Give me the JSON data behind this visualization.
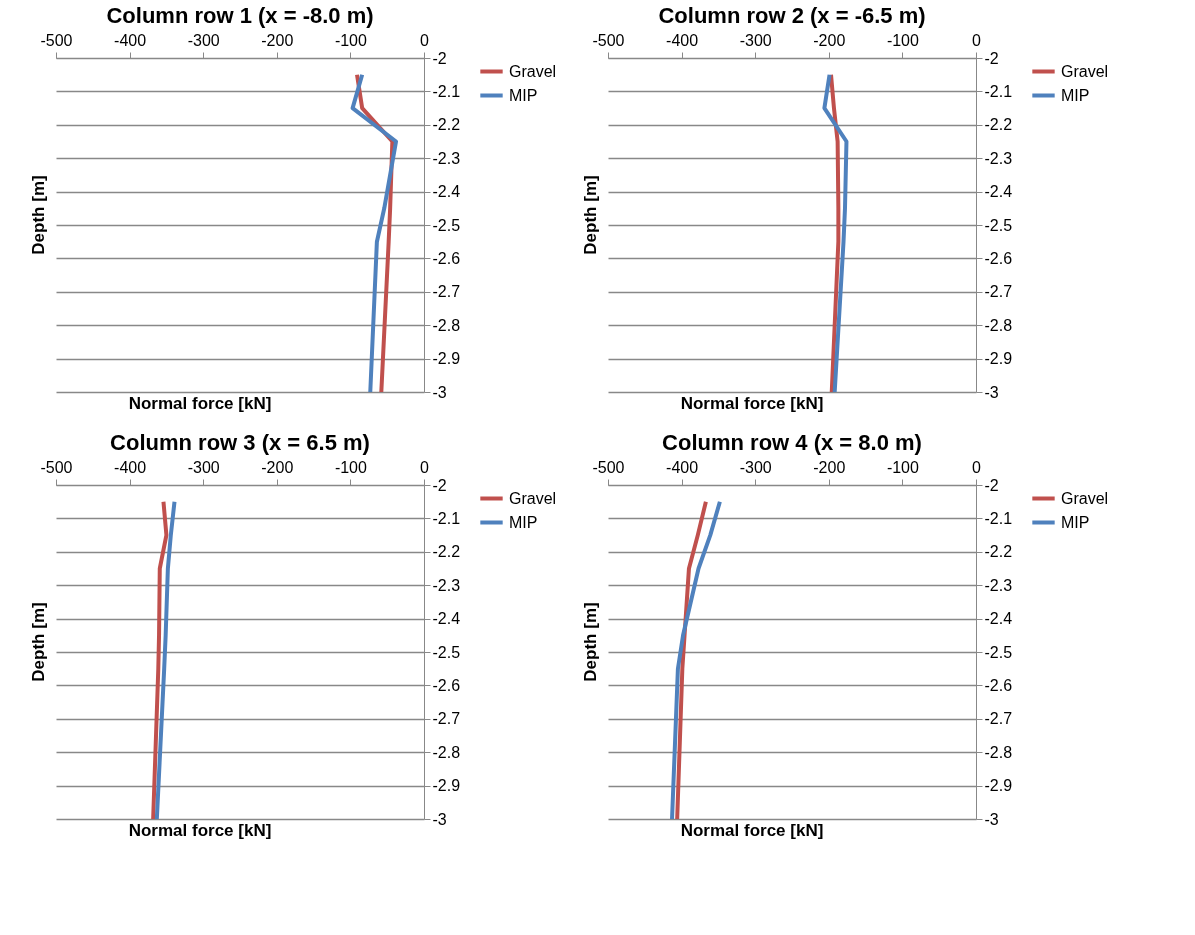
{
  "chart_data": [
    {
      "type": "line",
      "title": "Column row 1 (x = -8.0 m)",
      "xlabel": "Normal force [kN]",
      "ylabel": "Depth [m]",
      "xlim": [
        -500,
        0
      ],
      "xticks": [
        -500,
        -400,
        -300,
        -200,
        -100,
        0
      ],
      "ylim": [
        -3,
        -2
      ],
      "yticks": [
        -2,
        -2.1,
        -2.2,
        -2.3,
        -2.4,
        -2.5,
        -2.6,
        -2.7,
        -2.8,
        -2.9,
        -3
      ],
      "grid": "y",
      "legend": "right",
      "line_style": "solid",
      "marker": "none",
      "series": [
        {
          "name": "Gravel",
          "color": "#c0504d",
          "x": [
            -91,
            -84,
            -43,
            -46,
            -48,
            -58
          ],
          "values": [
            -2.05,
            -2.15,
            -2.25,
            -2.45,
            -2.55,
            -3.0
          ]
        },
        {
          "name": "MIP",
          "color": "#4f81bd",
          "x": [
            -84,
            -97,
            -38,
            -54,
            -64,
            -73
          ],
          "values": [
            -2.05,
            -2.15,
            -2.25,
            -2.45,
            -2.55,
            -3.0
          ]
        }
      ]
    },
    {
      "type": "line",
      "title": "Column row 2 (x = -6.5 m)",
      "xlabel": "Normal force [kN]",
      "ylabel": "Depth [m]",
      "xlim": [
        -500,
        0
      ],
      "xticks": [
        -500,
        -400,
        -300,
        -200,
        -100,
        0
      ],
      "ylim": [
        -3,
        -2
      ],
      "yticks": [
        -2,
        -2.1,
        -2.2,
        -2.3,
        -2.4,
        -2.5,
        -2.6,
        -2.7,
        -2.8,
        -2.9,
        -3
      ],
      "grid": "y",
      "legend": "right",
      "line_style": "solid",
      "marker": "none",
      "series": [
        {
          "name": "Gravel",
          "color": "#c0504d",
          "x": [
            -197,
            -193,
            -188,
            -187,
            -187,
            -196
          ],
          "values": [
            -2.05,
            -2.15,
            -2.25,
            -2.45,
            -2.55,
            -3.0
          ]
        },
        {
          "name": "MIP",
          "color": "#4f81bd",
          "x": [
            -199,
            -206,
            -176,
            -178,
            -180,
            -192
          ],
          "values": [
            -2.05,
            -2.15,
            -2.25,
            -2.45,
            -2.55,
            -3.0
          ]
        }
      ]
    },
    {
      "type": "line",
      "title": "Column row 3 (x = 6.5 m)",
      "xlabel": "Normal force [kN]",
      "ylabel": "Depth [m]",
      "xlim": [
        -500,
        0
      ],
      "xticks": [
        -500,
        -400,
        -300,
        -200,
        -100,
        0
      ],
      "ylim": [
        -3,
        -2
      ],
      "yticks": [
        -2,
        -2.1,
        -2.2,
        -2.3,
        -2.4,
        -2.5,
        -2.6,
        -2.7,
        -2.8,
        -2.9,
        -3
      ],
      "grid": "y",
      "legend": "right",
      "line_style": "solid",
      "marker": "none",
      "series": [
        {
          "name": "Gravel",
          "color": "#c0504d",
          "x": [
            -354,
            -350,
            -359,
            -360,
            -361,
            -368
          ],
          "values": [
            -2.05,
            -2.15,
            -2.25,
            -2.45,
            -2.55,
            -3.0
          ]
        },
        {
          "name": "MIP",
          "color": "#4f81bd",
          "x": [
            -339,
            -344,
            -348,
            -351,
            -353,
            -363
          ],
          "values": [
            -2.05,
            -2.15,
            -2.25,
            -2.45,
            -2.55,
            -3.0
          ]
        }
      ]
    },
    {
      "type": "line",
      "title": "Column row 4 (x = 8.0 m)",
      "xlabel": "Normal force [kN]",
      "ylabel": "Depth [m]",
      "xlim": [
        -500,
        0
      ],
      "xticks": [
        -500,
        -400,
        -300,
        -200,
        -100,
        0
      ],
      "ylim": [
        -3,
        -2
      ],
      "yticks": [
        -2,
        -2.1,
        -2.2,
        -2.3,
        -2.4,
        -2.5,
        -2.6,
        -2.7,
        -2.8,
        -2.9,
        -3
      ],
      "grid": "y",
      "legend": "right",
      "line_style": "solid",
      "marker": "none",
      "series": [
        {
          "name": "Gravel",
          "color": "#c0504d",
          "x": [
            -367,
            -378,
            -390,
            -396,
            -399,
            -406
          ],
          "values": [
            -2.05,
            -2.15,
            -2.25,
            -2.45,
            -2.55,
            -3.0
          ]
        },
        {
          "name": "MIP",
          "color": "#4f81bd",
          "x": [
            -348,
            -361,
            -377,
            -398,
            -405,
            -413
          ],
          "values": [
            -2.05,
            -2.15,
            -2.25,
            -2.45,
            -2.55,
            -3.0
          ]
        }
      ]
    }
  ]
}
